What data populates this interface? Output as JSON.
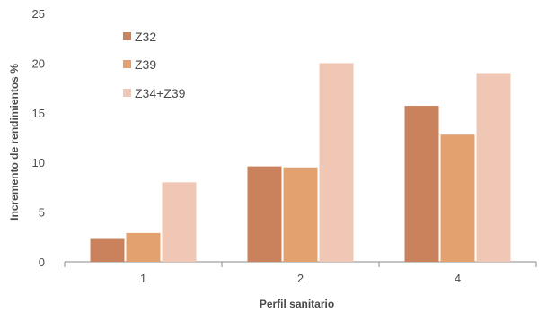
{
  "chart_data": {
    "type": "bar",
    "title": "",
    "xlabel": "Perfil sanitario",
    "ylabel": "Incremento de rendimientos %",
    "ylim": [
      0,
      25
    ],
    "yticks": [
      "0",
      "5",
      "10",
      "15",
      "20",
      "25"
    ],
    "categories": [
      "1",
      "2",
      "4"
    ],
    "series": [
      {
        "name": "Z32",
        "color": "#c9825c",
        "values": [
          2.3,
          9.6,
          15.7
        ]
      },
      {
        "name": "Z39",
        "color": "#e3a16f",
        "values": [
          2.9,
          9.5,
          12.8
        ]
      },
      {
        "name": "Z34+Z39",
        "color": "#f0c7b4",
        "values": [
          8.0,
          20.0,
          19.0
        ]
      }
    ],
    "legend": "top-left",
    "grid": false
  }
}
